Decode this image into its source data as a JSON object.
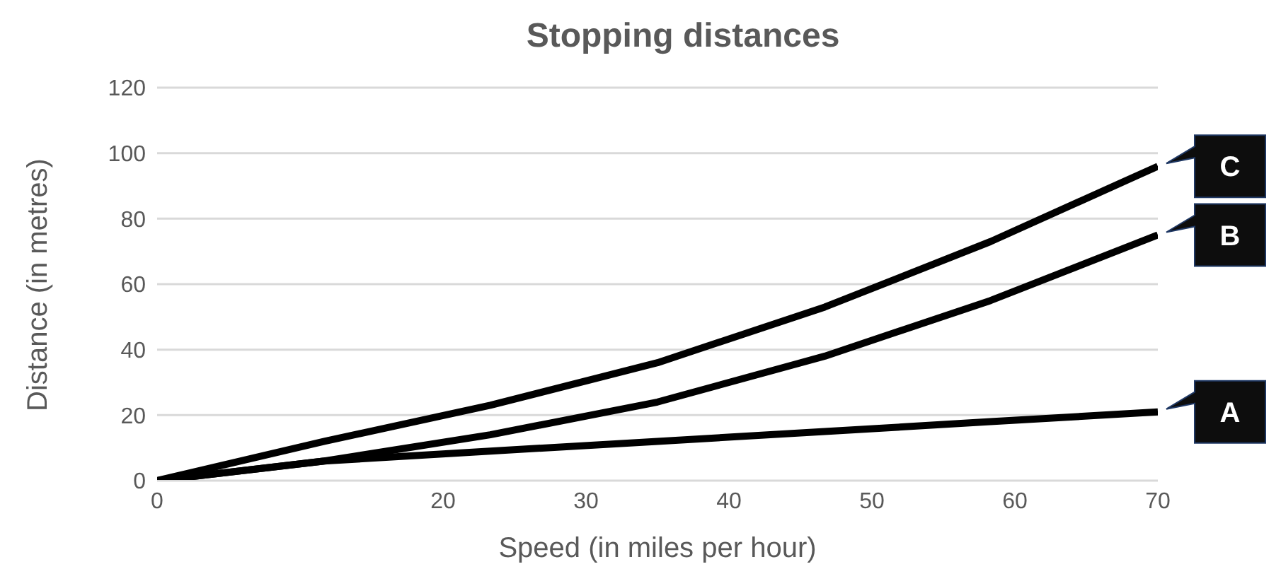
{
  "chart_data": {
    "type": "line",
    "title": "Stopping distances",
    "xlabel": "Speed (in miles per hour)",
    "ylabel": "Distance (in metres)",
    "x": [
      0,
      11.7,
      23.3,
      35,
      46.7,
      58.3,
      70
    ],
    "series": [
      {
        "name": "A",
        "color": "#000000",
        "values": [
          0,
          6,
          9,
          12,
          15,
          18,
          21
        ]
      },
      {
        "name": "B",
        "color": "#000000",
        "values": [
          0,
          6,
          14,
          24,
          38,
          55,
          75
        ]
      },
      {
        "name": "C",
        "color": "#000000",
        "values": [
          0,
          12,
          23,
          36,
          53,
          73,
          96
        ]
      }
    ],
    "xlim": [
      0,
      70
    ],
    "xticks": [
      0,
      20,
      30,
      40,
      50,
      60,
      70
    ],
    "ylim": [
      0,
      120
    ],
    "yticks": [
      0,
      20,
      40,
      60,
      80,
      100,
      120
    ],
    "grid": "y",
    "legend": "right",
    "marker": "none",
    "line_style": "solid"
  }
}
